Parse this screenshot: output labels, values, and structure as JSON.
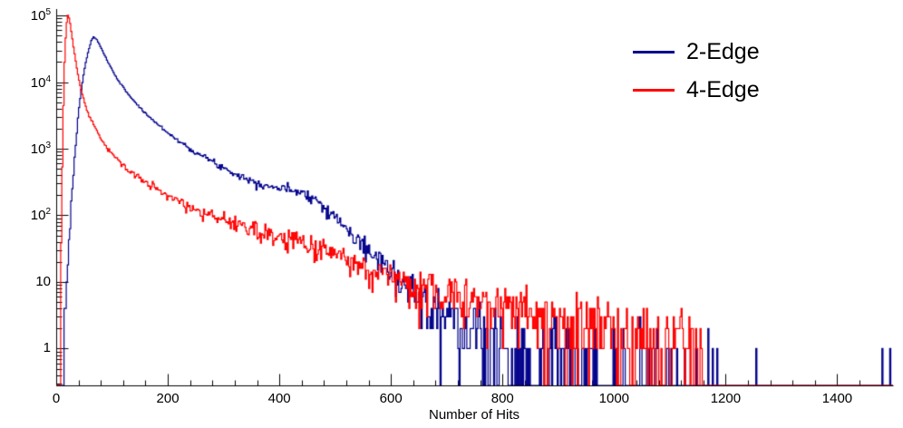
{
  "chart_data": {
    "type": "line",
    "subtype": "histogram-step",
    "title": "",
    "xlabel": "Number of Hits",
    "ylabel": "",
    "x_scale": "linear",
    "y_scale": "log",
    "xlim": [
      0,
      1500
    ],
    "ylog_min": 0.28,
    "ylog_max": 125000,
    "grid": false,
    "background": "#ffffff",
    "axis_color": "#000000",
    "x_major_ticks": [
      0,
      200,
      400,
      600,
      800,
      1000,
      1200,
      1400
    ],
    "x_major_step": 200,
    "x_minor_step": 40,
    "y_major_ticks": [
      1,
      10,
      100,
      1000,
      10000,
      100000
    ],
    "y_tick_labels": [
      "1",
      "10",
      "10^2",
      "10^3",
      "10^4",
      "10^5"
    ],
    "legend_position": "top-right",
    "legend": [
      {
        "label": "2-Edge",
        "color": "#00008b"
      },
      {
        "label": "4-Edge",
        "color": "#ff0000"
      }
    ],
    "noise_seed": 7,
    "series": [
      {
        "name": "2-Edge",
        "color": "#00008b",
        "bin_width": 2,
        "peak": {
          "x": 67,
          "y": 48000
        },
        "anchors": [
          [
            10,
            0.4
          ],
          [
            16,
            3
          ],
          [
            22,
            30
          ],
          [
            28,
            200
          ],
          [
            34,
            900
          ],
          [
            40,
            3500
          ],
          [
            46,
            9000
          ],
          [
            52,
            18000
          ],
          [
            58,
            30000
          ],
          [
            63,
            42000
          ],
          [
            67,
            48000
          ],
          [
            72,
            44000
          ],
          [
            78,
            36000
          ],
          [
            85,
            27000
          ],
          [
            95,
            18500
          ],
          [
            105,
            13000
          ],
          [
            115,
            9500
          ],
          [
            130,
            6500
          ],
          [
            145,
            4600
          ],
          [
            160,
            3400
          ],
          [
            180,
            2400
          ],
          [
            200,
            1750
          ],
          [
            220,
            1300
          ],
          [
            240,
            1000
          ],
          [
            260,
            800
          ],
          [
            280,
            640
          ],
          [
            300,
            520
          ],
          [
            320,
            430
          ],
          [
            340,
            360
          ],
          [
            360,
            310
          ],
          [
            380,
            280
          ],
          [
            400,
            255
          ],
          [
            415,
            245
          ],
          [
            430,
            240
          ],
          [
            445,
            220
          ],
          [
            460,
            185
          ],
          [
            475,
            150
          ],
          [
            490,
            115
          ],
          [
            505,
            85
          ],
          [
            520,
            62
          ],
          [
            535,
            46
          ],
          [
            550,
            35
          ],
          [
            565,
            27
          ],
          [
            580,
            20
          ],
          [
            600,
            14
          ],
          [
            620,
            10
          ],
          [
            650,
            6.5
          ],
          [
            680,
            4.2
          ],
          [
            710,
            2.8
          ],
          [
            740,
            2.0
          ],
          [
            780,
            1.4
          ],
          [
            820,
            1.0
          ],
          [
            860,
            0.8
          ],
          [
            900,
            0.65
          ],
          [
            950,
            0.5
          ],
          [
            1000,
            0.42
          ],
          [
            1060,
            0.36
          ],
          [
            1120,
            0.32
          ],
          [
            1150,
            0.3
          ],
          [
            1156,
            0.001
          ]
        ],
        "spikes": [
          [
            1168,
            2
          ],
          [
            1176,
            1
          ],
          [
            1184,
            1
          ],
          [
            1255,
            1
          ],
          [
            1481,
            1
          ],
          [
            1495,
            1
          ]
        ]
      },
      {
        "name": "4-Edge",
        "color": "#ff0000",
        "bin_width": 2,
        "peak": {
          "x": 21,
          "y": 100000
        },
        "anchors": [
          [
            6,
            0.4
          ],
          [
            9,
            40
          ],
          [
            12,
            2000
          ],
          [
            15,
            20000
          ],
          [
            18,
            70000
          ],
          [
            21,
            100000
          ],
          [
            24,
            88000
          ],
          [
            27,
            58000
          ],
          [
            31,
            34000
          ],
          [
            36,
            18000
          ],
          [
            42,
            9500
          ],
          [
            50,
            5200
          ],
          [
            60,
            3000
          ],
          [
            72,
            1900
          ],
          [
            85,
            1250
          ],
          [
            100,
            850
          ],
          [
            115,
            620
          ],
          [
            130,
            480
          ],
          [
            150,
            360
          ],
          [
            170,
            280
          ],
          [
            200,
            195
          ],
          [
            230,
            148
          ],
          [
            260,
            112
          ],
          [
            290,
            88
          ],
          [
            320,
            70
          ],
          [
            350,
            58
          ],
          [
            380,
            50
          ],
          [
            410,
            45
          ],
          [
            440,
            40
          ],
          [
            470,
            33
          ],
          [
            500,
            27
          ],
          [
            530,
            21
          ],
          [
            560,
            16
          ],
          [
            590,
            13
          ],
          [
            620,
            11
          ],
          [
            650,
            9
          ],
          [
            690,
            7.2
          ],
          [
            730,
            6.0
          ],
          [
            780,
            4.8
          ],
          [
            830,
            3.9
          ],
          [
            880,
            3.2
          ],
          [
            930,
            2.7
          ],
          [
            980,
            2.3
          ],
          [
            1030,
            1.9
          ],
          [
            1080,
            1.6
          ],
          [
            1130,
            1.3
          ],
          [
            1156,
            1.1
          ],
          [
            1162,
            0.001
          ]
        ],
        "spikes": []
      }
    ]
  }
}
